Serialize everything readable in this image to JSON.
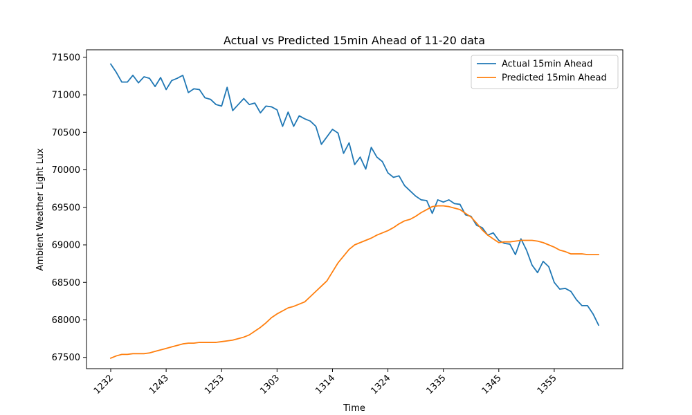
{
  "chart_data": {
    "type": "line",
    "title": "Actual vs Predicted 15min Ahead of 11-20 data",
    "xlabel": "Time",
    "ylabel": "Ambient Weather Light Lux",
    "x_tick_labels": [
      "1232",
      "1243",
      "1253",
      "1303",
      "1314",
      "1324",
      "1335",
      "1345",
      "1355"
    ],
    "x_tick_index": [
      0,
      10,
      20,
      30,
      40,
      50,
      60,
      70,
      80
    ],
    "ylim": [
      67350,
      71600
    ],
    "y_ticks": [
      67500,
      68000,
      68500,
      69000,
      69500,
      70000,
      70500,
      71000,
      71500
    ],
    "x_count": 89,
    "legend_position": "top-right",
    "grid": false,
    "series": [
      {
        "name": "Actual 15min Ahead",
        "color": "#1f77b4",
        "values": [
          71410,
          71300,
          71170,
          71170,
          71260,
          71160,
          71240,
          71220,
          71110,
          71230,
          71070,
          71190,
          71220,
          71260,
          71030,
          71080,
          71070,
          70960,
          70940,
          70870,
          70850,
          71100,
          70790,
          70870,
          70950,
          70870,
          70890,
          70760,
          70850,
          70840,
          70800,
          70580,
          70770,
          70580,
          70720,
          70680,
          70650,
          70580,
          70340,
          70440,
          70540,
          70490,
          70220,
          70360,
          70070,
          70170,
          70010,
          70300,
          70170,
          70110,
          69960,
          69900,
          69920,
          69790,
          69720,
          69650,
          69600,
          69590,
          69420,
          69600,
          69570,
          69600,
          69550,
          69540,
          69400,
          69380,
          69260,
          69230,
          69130,
          69160,
          69060,
          69020,
          69010,
          68870,
          69080,
          68930,
          68730,
          68630,
          68780,
          68710,
          68500,
          68410,
          68420,
          68380,
          68270,
          68190,
          68190,
          68080,
          67930
        ]
      },
      {
        "name": "Predicted 15min Ahead",
        "color": "#ff7f0e",
        "values": [
          67490,
          67520,
          67540,
          67540,
          67550,
          67550,
          67550,
          67560,
          67580,
          67600,
          67620,
          67640,
          67660,
          67680,
          67690,
          67690,
          67700,
          67700,
          67700,
          67700,
          67710,
          67720,
          67730,
          67750,
          67770,
          67800,
          67850,
          67900,
          67960,
          68030,
          68080,
          68120,
          68160,
          68180,
          68210,
          68240,
          68310,
          68380,
          68450,
          68520,
          68640,
          68760,
          68850,
          68940,
          69000,
          69030,
          69060,
          69090,
          69130,
          69160,
          69190,
          69230,
          69280,
          69320,
          69340,
          69380,
          69430,
          69470,
          69510,
          69520,
          69520,
          69510,
          69490,
          69470,
          69420,
          69370,
          69290,
          69200,
          69130,
          69080,
          69030,
          69040,
          69040,
          69050,
          69060,
          69060,
          69060,
          69050,
          69030,
          69000,
          68970,
          68930,
          68910,
          68880,
          68880,
          68880,
          68870,
          68870,
          68870
        ]
      }
    ]
  }
}
